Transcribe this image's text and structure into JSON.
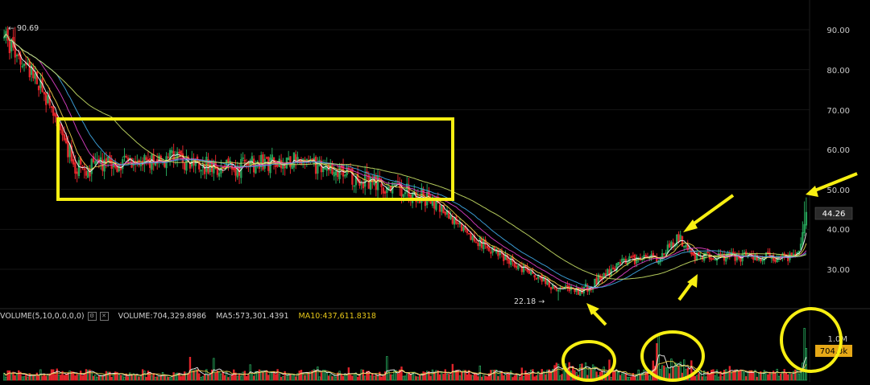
{
  "volume_header": {
    "indicator": "VOLUME(5,10,0,0,0,0)",
    "volume": "VOLUME:704,329.8986",
    "ma5": "MA5:573,301.4391",
    "ma10": "MA10:437,611.8318"
  },
  "price_axis": {
    "ticks": [
      "90.00",
      "80.00",
      "70.00",
      "60.00",
      "50.00",
      "40.00",
      "30.00"
    ],
    "last_price_label": "44.26"
  },
  "volume_axis": {
    "ticks": [
      "1.0M"
    ],
    "last_volume_label": "704.3k"
  },
  "annotations": {
    "high_label": "← 90.69",
    "low_label": "22.18 →"
  },
  "colors": {
    "background": "#000000",
    "up": "#26a65b",
    "down": "#e0242a",
    "highlight": "#f7ef12",
    "ma_short": "#ffffff",
    "ma_mid": "#f0d24a",
    "ma_long1": "#e040c8",
    "ma_long2": "#3fa9e6",
    "ma_long3": "#c8e066"
  },
  "chart_data": {
    "type": "candlestick",
    "ylim": [
      20,
      95
    ],
    "y_ticks": [
      30,
      40,
      50,
      60,
      70,
      80,
      90
    ],
    "high": 90.69,
    "low": 22.18,
    "last": 44.26,
    "last_volume": 704329.8986,
    "segments": [
      {
        "from": 0,
        "to": 18,
        "start": 88,
        "end": 78
      },
      {
        "from": 18,
        "to": 40,
        "start": 78,
        "end": 55
      },
      {
        "from": 40,
        "to": 90,
        "start": 55,
        "end": 58
      },
      {
        "from": 90,
        "to": 120,
        "start": 58,
        "end": 55
      },
      {
        "from": 120,
        "to": 160,
        "start": 55,
        "end": 58
      },
      {
        "from": 160,
        "to": 190,
        "start": 58,
        "end": 53
      },
      {
        "from": 190,
        "to": 220,
        "start": 53,
        "end": 50
      },
      {
        "from": 220,
        "to": 235,
        "start": 50,
        "end": 47
      },
      {
        "from": 235,
        "to": 260,
        "start": 47,
        "end": 37
      },
      {
        "from": 260,
        "to": 300,
        "start": 37,
        "end": 26
      },
      {
        "from": 300,
        "to": 315,
        "start": 26,
        "end": 24
      },
      {
        "from": 315,
        "to": 340,
        "start": 24,
        "end": 32
      },
      {
        "from": 340,
        "to": 360,
        "start": 32,
        "end": 33
      },
      {
        "from": 360,
        "to": 370,
        "start": 33,
        "end": 38
      },
      {
        "from": 370,
        "to": 378,
        "start": 38,
        "end": 33
      },
      {
        "from": 378,
        "to": 430,
        "start": 33,
        "end": 33
      },
      {
        "from": 430,
        "to": 436,
        "start": 33,
        "end": 34
      },
      {
        "from": 436,
        "to": 440,
        "start": 34,
        "end": 44.26
      }
    ],
    "candle_count": 441,
    "moving_averages": [
      {
        "period": 5,
        "color_key": "ma_short"
      },
      {
        "period": 10,
        "color_key": "ma_mid"
      },
      {
        "period": 20,
        "color_key": "ma_long1"
      },
      {
        "period": 30,
        "color_key": "ma_long2"
      },
      {
        "period": 60,
        "color_key": "ma_long3"
      }
    ],
    "volume_ma": [
      {
        "period": 5,
        "color_key": "ma_short"
      },
      {
        "period": 10,
        "color_key": "ma_mid"
      }
    ],
    "volume_ylim": [
      0,
      1300000
    ],
    "volume_y_ticks": [
      1000000
    ]
  }
}
